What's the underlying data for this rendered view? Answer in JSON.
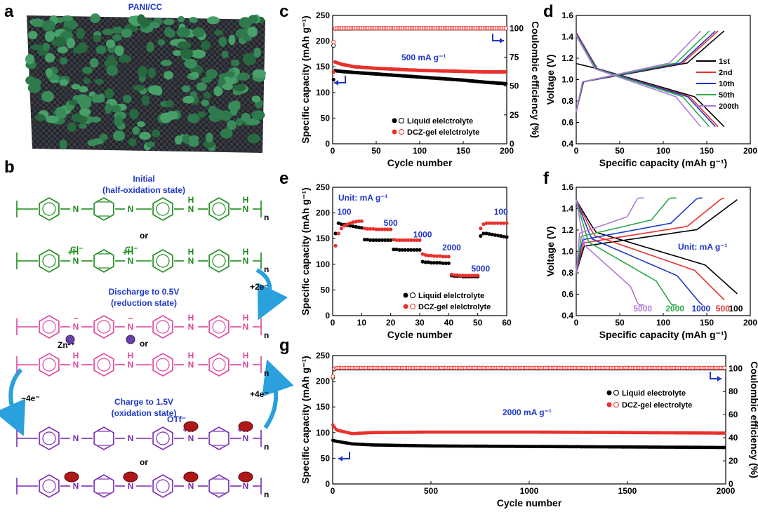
{
  "panel_letters": [
    "a",
    "b",
    "c",
    "d",
    "e",
    "f",
    "g"
  ],
  "panel_a": {
    "title": "PANI/CC"
  },
  "panel_b": {
    "labels": [
      "Initial",
      "(half-oxidation state)",
      "or",
      "Discharge to 0.5V",
      "(reduction state)",
      "or",
      "Charge to 1.5V",
      "(oxidation state)",
      "or"
    ],
    "arrows": [
      "+2e⁻",
      "−4e⁻",
      "+4e⁻"
    ],
    "ions": [
      "Cl⁻",
      "Zn²⁺",
      "OTf⁻"
    ],
    "chains": [
      {
        "color": "#1a8a1a",
        "units": [
          "B",
          "Q",
          "B",
          "B"
        ],
        "n": [
          "N",
          "N",
          "NH",
          "NH"
        ]
      },
      {
        "color": "#1a8a1a",
        "units": [
          "B",
          "Q",
          "B",
          "B"
        ],
        "n": [
          "NH+",
          "NH+",
          "NH",
          "NH"
        ]
      },
      {
        "color": "#e0449c",
        "units": [
          "B",
          "B",
          "B",
          "B"
        ],
        "n": [
          "N−",
          "N−",
          "NH",
          "NH"
        ]
      },
      {
        "color": "#e0449c",
        "units": [
          "B",
          "B",
          "B",
          "B"
        ],
        "n": [
          "NH",
          "NH",
          "NH",
          "NH"
        ]
      },
      {
        "color": "#7a2bb8",
        "units": [
          "B",
          "Q",
          "B",
          "Q"
        ],
        "n": [
          "N",
          "N",
          "NH+",
          "NH+"
        ]
      },
      {
        "color": "#7a2bb8",
        "units": [
          "B",
          "Q",
          "B",
          "Q"
        ],
        "n": [
          "NH+",
          "NH+",
          "NH+",
          "NH+"
        ]
      }
    ]
  },
  "colors": {
    "black": "#000000",
    "red": "#e8312c",
    "blue": "#1f37c8",
    "green_chain": "#1a8a1a",
    "pink_chain": "#e0449c",
    "purple_chain": "#7a2bb8",
    "arrow_blue": "#2aa0dc"
  },
  "chart_data": [
    {
      "panel": "c",
      "type": "scatter",
      "xlabel": "Cycle number",
      "ylabel": "Specific capacity (mAh g⁻¹)",
      "y2label": "Coulombic efficiency (%)",
      "xlim": [
        0,
        200
      ],
      "ylim": [
        0,
        250
      ],
      "y2lim": [
        0,
        111.1
      ],
      "xticks": [
        0,
        50,
        100,
        150,
        200
      ],
      "yticks": [
        0,
        50,
        100,
        150,
        200,
        250
      ],
      "y2ticks": [
        0,
        25,
        50,
        75,
        100
      ],
      "annotation": "500 mA g⁻¹",
      "legend": [
        "Liquid elelctrolyte",
        "DCZ-gel elelctrolyte"
      ],
      "series": [
        {
          "name": "Liquid elelctrolyte",
          "axis": "left",
          "color": "#000000",
          "x": [
            1,
            2,
            5,
            10,
            25,
            50,
            75,
            100,
            125,
            150,
            175,
            200
          ],
          "y": [
            125,
            143,
            142,
            141,
            139,
            136,
            133,
            130,
            127,
            124,
            120,
            117
          ]
        },
        {
          "name": "DCZ-gel elelctrolyte",
          "axis": "left",
          "color": "#e8312c",
          "x": [
            1,
            2,
            5,
            10,
            25,
            50,
            75,
            100,
            125,
            150,
            175,
            200
          ],
          "y": [
            140,
            160,
            158,
            155,
            150,
            147,
            145,
            143,
            142,
            141,
            140,
            140
          ]
        },
        {
          "name": "Liquid elelctrolyte",
          "axis": "right",
          "color": "#000000",
          "hollow": true,
          "x": [
            1,
            2,
            5,
            50,
            100,
            150,
            200
          ],
          "y": [
            85,
            99.5,
            99.8,
            99.9,
            99.9,
            99.9,
            99.9
          ]
        },
        {
          "name": "DCZ-gel elelctrolyte",
          "axis": "right",
          "color": "#e8312c",
          "hollow": true,
          "x": [
            1,
            2,
            5,
            50,
            100,
            150,
            200
          ],
          "y": [
            88,
            99.6,
            100,
            100,
            100,
            100,
            100
          ]
        }
      ]
    },
    {
      "panel": "d",
      "type": "line",
      "xlabel": "Specific capacity (mAh g⁻¹)",
      "ylabel": "Voltage (V)",
      "xlim": [
        0,
        200
      ],
      "ylim": [
        0.4,
        1.6
      ],
      "xticks": [
        0,
        50,
        100,
        150,
        200
      ],
      "yticks": [
        0.4,
        0.6,
        0.8,
        1.0,
        1.2,
        1.4,
        1.6
      ],
      "legend": [
        "1st",
        "2nd",
        "10th",
        "50th",
        "200th"
      ],
      "series": [
        {
          "name": "1st",
          "color": "#000000",
          "max": 170,
          "d_start": 1.15
        },
        {
          "name": "2nd",
          "color": "#e8312c",
          "max": 163,
          "d_start": 1.44
        },
        {
          "name": "10th",
          "color": "#1f37c8",
          "max": 160,
          "d_start": 1.43
        },
        {
          "name": "50th",
          "color": "#2ea84a",
          "max": 153,
          "d_start": 1.42
        },
        {
          "name": "200th",
          "color": "#b07ad8",
          "max": 143,
          "d_start": 1.41
        }
      ]
    },
    {
      "panel": "e",
      "type": "scatter",
      "xlabel": "Cycle number",
      "ylabel": "Specific capacity (mAh g⁻¹)",
      "xlim": [
        0,
        60
      ],
      "ylim": [
        0,
        250
      ],
      "xticks": [
        0,
        10,
        20,
        30,
        40,
        50,
        60
      ],
      "yticks": [
        0,
        50,
        100,
        150,
        200,
        250
      ],
      "unit_label": "Unit: mA g⁻¹",
      "rate_labels": [
        "100",
        "500",
        "1000",
        "2000",
        "5000",
        "100"
      ],
      "legend": [
        "Liquid elelctrolyte",
        "DCZ-gel elelctrolyte"
      ],
      "series": [
        {
          "name": "Liquid elelctrolyte",
          "color": "#000000",
          "y": [
            160,
            180,
            178,
            177,
            176,
            175,
            174,
            173,
            172,
            171,
            148,
            148,
            147,
            147,
            147,
            147,
            147,
            147,
            147,
            147,
            129,
            129,
            128,
            128,
            128,
            128,
            128,
            128,
            128,
            128,
            105,
            104,
            104,
            103,
            103,
            103,
            103,
            102,
            102,
            102,
            78,
            77,
            77,
            77,
            76,
            76,
            76,
            76,
            76,
            76,
            155,
            160,
            160,
            159,
            158,
            157,
            156,
            155,
            154,
            153
          ]
        },
        {
          "name": "DCZ-gel elelctrolyte",
          "color": "#e8312c",
          "y": [
            136,
            160,
            170,
            175,
            178,
            180,
            182,
            183,
            184,
            184,
            170,
            169,
            169,
            169,
            168,
            168,
            168,
            168,
            168,
            168,
            148,
            147,
            147,
            147,
            147,
            147,
            147,
            147,
            147,
            147,
            120,
            118,
            117,
            117,
            116,
            116,
            116,
            115,
            115,
            115,
            80,
            79,
            79,
            78,
            78,
            78,
            78,
            78,
            78,
            78,
            170,
            178,
            180,
            180,
            180,
            180,
            180,
            180,
            180,
            180
          ]
        }
      ]
    },
    {
      "panel": "f",
      "type": "line",
      "xlabel": "Specific capacity (mAh g⁻¹)",
      "ylabel": "Voltage (V)",
      "xlim": [
        0,
        200
      ],
      "ylim": [
        0.4,
        1.6
      ],
      "xticks": [
        0,
        50,
        100,
        150,
        200
      ],
      "yticks": [
        0.4,
        0.6,
        0.8,
        1.0,
        1.2,
        1.4,
        1.6
      ],
      "unit_label": "Unit: mA g⁻¹",
      "series": [
        {
          "name": "100",
          "color": "#000000",
          "max": 185
        },
        {
          "name": "500",
          "color": "#e8312c",
          "max": 170
        },
        {
          "name": "1000",
          "color": "#1f37c8",
          "max": 145
        },
        {
          "name": "2000",
          "color": "#2ea84a",
          "max": 115
        },
        {
          "name": "5000",
          "color": "#b07ad8",
          "max": 78
        }
      ]
    },
    {
      "panel": "g",
      "type": "scatter",
      "xlabel": "Cycle number",
      "ylabel": "Specific capacity (mAh g⁻¹)",
      "y2label": "Coulombic efficiency (%)",
      "xlim": [
        0,
        2000
      ],
      "ylim": [
        0,
        250
      ],
      "y2lim": [
        0,
        111.1
      ],
      "xticks": [
        0,
        500,
        1000,
        1500,
        2000
      ],
      "yticks": [
        0,
        50,
        100,
        150,
        200,
        250
      ],
      "y2ticks": [
        0,
        20,
        40,
        60,
        80,
        100
      ],
      "annotation": "2000 mA g⁻¹",
      "legend": [
        "Liquid electrolyte",
        "DCZ-gel electrolyte"
      ],
      "series": [
        {
          "name": "Liquid electrolyte",
          "axis": "left",
          "color": "#000000",
          "x": [
            1,
            20,
            100,
            200,
            500,
            1000,
            1500,
            2000
          ],
          "y": [
            85,
            83,
            78,
            76,
            74,
            73,
            72,
            71
          ]
        },
        {
          "name": "DCZ-gel electrolyte",
          "axis": "left",
          "color": "#e8312c",
          "x": [
            1,
            20,
            100,
            200,
            500,
            1000,
            1500,
            2000
          ],
          "y": [
            115,
            105,
            98,
            100,
            101,
            101,
            100,
            99
          ]
        },
        {
          "name": "Liquid electrolyte",
          "axis": "right",
          "color": "#000000",
          "hollow": true,
          "x": [
            1,
            10,
            500,
            1000,
            1500,
            2000
          ],
          "y": [
            92,
            100,
            100,
            100,
            100,
            100
          ]
        },
        {
          "name": "DCZ-gel electrolyte",
          "axis": "right",
          "color": "#e8312c",
          "hollow": true,
          "x": [
            1,
            10,
            500,
            1000,
            1500,
            2000
          ],
          "y": [
            93,
            100.5,
            100.5,
            100.5,
            100.5,
            100.5
          ]
        }
      ]
    }
  ]
}
